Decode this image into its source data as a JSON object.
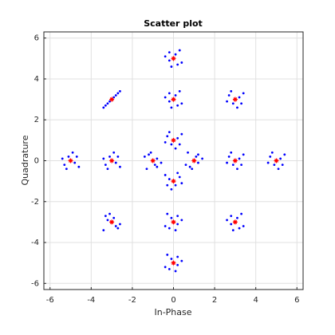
{
  "chart_data": {
    "type": "scatter",
    "title": "Scatter plot",
    "xlabel": "In-Phase",
    "ylabel": "Quadrature",
    "xlim": [
      -6.3,
      6.3
    ],
    "ylim": [
      -6.3,
      6.3
    ],
    "xticks": [
      -6,
      -4,
      -2,
      0,
      2,
      4,
      6
    ],
    "yticks": [
      -6,
      -4,
      -2,
      0,
      2,
      4,
      6
    ],
    "grid": true,
    "series": [
      {
        "color": "#0000ff",
        "marker": "dot",
        "x": [
          0.2,
          -0.3,
          0.1,
          -0.1,
          0.4,
          -0.4,
          0.3,
          -0.2,
          1.1,
          0.8,
          1.4,
          1.2,
          0.7,
          0.9,
          1.2,
          0.6,
          -0.2,
          0.3,
          -0.1,
          0.1,
          -0.4,
          0.4,
          -0.3,
          0.2,
          -0.9,
          -1.2,
          -0.6,
          -0.8,
          -1.3,
          -1.1,
          -0.8,
          -1.4,
          3.2,
          2.7,
          3.1,
          2.9,
          3.4,
          2.6,
          3.3,
          2.8,
          -2.8,
          -3.3,
          -2.9,
          -3.1,
          -2.6,
          -3.4,
          -2.7,
          -3.2,
          0.1,
          0.2,
          -0.4,
          -0.2,
          0.3,
          -0.1,
          -0.2,
          0.4,
          -0.1,
          -0.2,
          0.4,
          0.2,
          -0.3,
          0.1,
          0.2,
          -0.4,
          3.2,
          2.7,
          3.1,
          2.9,
          3.4,
          2.6,
          3.3,
          2.8,
          3.1,
          3.2,
          2.6,
          2.8,
          3.3,
          2.9,
          2.8,
          3.4,
          -2.8,
          -3.3,
          -2.9,
          -3.1,
          -2.6,
          -3.4,
          -2.7,
          -3.2,
          -3.2,
          -2.7,
          -3.1,
          -2.9,
          -3.4,
          -2.6,
          -3.3,
          -2.8,
          5.2,
          4.7,
          5.1,
          4.9,
          5.4,
          4.6,
          5.3,
          4.8,
          -4.8,
          -5.3,
          -4.9,
          -5.1,
          -4.6,
          -5.4,
          -4.7,
          -5.2,
          0.1,
          0.2,
          -0.4,
          -0.2,
          0.3,
          -0.1,
          -0.2,
          0.4,
          -0.1,
          -0.2,
          0.4,
          0.2,
          -0.3,
          0.1,
          0.2,
          -0.4
        ],
        "y": [
          1.1,
          1.2,
          0.6,
          0.8,
          1.3,
          0.9,
          0.8,
          1.4,
          0.2,
          -0.3,
          0.1,
          -0.1,
          0.4,
          -0.4,
          0.3,
          -0.2,
          -0.9,
          -0.8,
          -1.4,
          -1.2,
          -0.7,
          -1.1,
          -1.2,
          -0.6,
          -0.2,
          0.3,
          -0.1,
          0.1,
          -0.4,
          0.4,
          -0.3,
          0.2,
          0.1,
          0.2,
          -0.4,
          -0.2,
          0.3,
          -0.1,
          -0.2,
          0.4,
          -0.1,
          -0.2,
          0.4,
          0.2,
          -0.3,
          0.1,
          0.2,
          -0.4,
          3.2,
          2.7,
          3.1,
          2.9,
          3.4,
          2.6,
          3.3,
          2.8,
          -2.8,
          -3.3,
          -2.9,
          -3.1,
          -2.6,
          -3.4,
          -2.7,
          -3.2,
          3.1,
          3.2,
          2.6,
          2.8,
          3.3,
          2.9,
          2.8,
          3.4,
          -2.8,
          -3.3,
          -2.9,
          -3.1,
          -2.6,
          -3.4,
          -2.7,
          -3.2,
          3.2,
          2.7,
          3.1,
          2.9,
          3.4,
          2.6,
          3.3,
          2.8,
          -2.9,
          -3.3,
          -2.6,
          -2.8,
          -3.4,
          -3.1,
          -2.7,
          -3.2,
          0.1,
          0.2,
          -0.4,
          -0.2,
          0.3,
          -0.1,
          -0.2,
          0.4,
          -0.1,
          -0.2,
          0.4,
          0.2,
          -0.3,
          0.1,
          0.2,
          -0.4,
          5.2,
          4.7,
          5.1,
          4.9,
          5.4,
          4.6,
          5.3,
          4.8,
          -4.8,
          -5.3,
          -4.9,
          -5.1,
          -4.6,
          -5.4,
          -4.7,
          -5.2
        ]
      },
      {
        "color": "#ff0000",
        "marker": "star",
        "x": [
          0,
          1,
          0,
          -1,
          3,
          -3,
          0,
          0,
          3,
          3,
          -3,
          -3,
          5,
          -5,
          0,
          0
        ],
        "y": [
          1,
          0,
          -1,
          0,
          0,
          0,
          3,
          -3,
          3,
          -3,
          3,
          -3,
          0,
          0,
          5,
          -5
        ]
      }
    ]
  }
}
